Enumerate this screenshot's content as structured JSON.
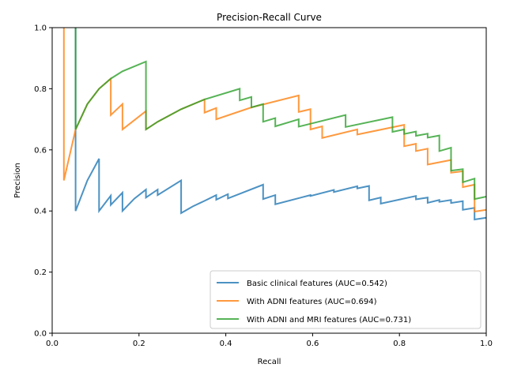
{
  "chart_data": {
    "type": "line",
    "title": "Precision-Recall Curve",
    "xlabel": "Recall",
    "ylabel": "Precision",
    "xlim": [
      0,
      1
    ],
    "ylim": [
      0,
      1
    ],
    "xticks": [
      0.0,
      0.2,
      0.4,
      0.6,
      0.8,
      1.0
    ],
    "yticks": [
      0.0,
      0.2,
      0.4,
      0.6,
      0.8,
      1.0
    ],
    "xtick_labels": [
      "0.0",
      "0.2",
      "0.4",
      "0.6",
      "0.8",
      "1.0"
    ],
    "ytick_labels": [
      "0.0",
      "0.2",
      "0.4",
      "0.6",
      "0.8",
      "1.0"
    ],
    "grid": false,
    "legend_position": "lower-right",
    "series": [
      {
        "name": "Basic clinical features (AUC=0.542)",
        "color": "#1f77b4",
        "x": [
          0.054,
          0.054,
          0.054,
          0.081,
          0.108,
          0.108,
          0.135,
          0.135,
          0.162,
          0.162,
          0.189,
          0.216,
          0.216,
          0.243,
          0.243,
          0.297,
          0.297,
          0.324,
          0.351,
          0.378,
          0.378,
          0.405,
          0.405,
          0.486,
          0.486,
          0.514,
          0.514,
          0.595,
          0.595,
          0.649,
          0.649,
          0.703,
          0.703,
          0.73,
          0.73,
          0.757,
          0.757,
          0.838,
          0.838,
          0.865,
          0.865,
          0.892,
          0.892,
          0.919,
          0.919,
          0.946,
          0.946,
          0.973,
          0.973,
          1.0
        ],
        "y": [
          1.0,
          0.9,
          0.4,
          0.5,
          0.571,
          0.4,
          0.45,
          0.42,
          0.46,
          0.4,
          0.44,
          0.47,
          0.444,
          0.47,
          0.452,
          0.5,
          0.393,
          0.415,
          0.433,
          0.452,
          0.437,
          0.455,
          0.441,
          0.486,
          0.439,
          0.452,
          0.422,
          0.452,
          0.449,
          0.469,
          0.462,
          0.481,
          0.474,
          0.482,
          0.435,
          0.444,
          0.424,
          0.449,
          0.438,
          0.444,
          0.427,
          0.436,
          0.43,
          0.436,
          0.426,
          0.432,
          0.404,
          0.41,
          0.372,
          0.378
        ]
      },
      {
        "name": "With ADNI features (AUC=0.694)",
        "color": "#ff7f0e",
        "x": [
          0.027,
          0.027,
          0.027,
          0.054,
          0.081,
          0.108,
          0.135,
          0.135,
          0.162,
          0.162,
          0.216,
          0.216,
          0.243,
          0.297,
          0.351,
          0.351,
          0.378,
          0.378,
          0.459,
          0.568,
          0.568,
          0.595,
          0.595,
          0.622,
          0.622,
          0.703,
          0.703,
          0.811,
          0.811,
          0.838,
          0.838,
          0.865,
          0.865,
          0.919,
          0.919,
          0.946,
          0.946,
          0.973,
          0.973,
          1.0
        ],
        "y": [
          1.0,
          0.75,
          0.5,
          0.667,
          0.75,
          0.8,
          0.833,
          0.714,
          0.75,
          0.667,
          0.727,
          0.667,
          0.692,
          0.733,
          0.765,
          0.722,
          0.737,
          0.7,
          0.739,
          0.778,
          0.724,
          0.733,
          0.667,
          0.677,
          0.639,
          0.667,
          0.65,
          0.682,
          0.612,
          0.62,
          0.596,
          0.604,
          0.552,
          0.567,
          0.525,
          0.53,
          0.478,
          0.486,
          0.398,
          0.404
        ]
      },
      {
        "name": "With ADNI and MRI features (AUC=0.731)",
        "color": "#2ca02c",
        "x": [
          0.054,
          0.054,
          0.081,
          0.108,
          0.135,
          0.162,
          0.216,
          0.216,
          0.243,
          0.297,
          0.351,
          0.432,
          0.432,
          0.459,
          0.459,
          0.486,
          0.486,
          0.514,
          0.514,
          0.568,
          0.568,
          0.676,
          0.676,
          0.784,
          0.784,
          0.811,
          0.811,
          0.838,
          0.838,
          0.865,
          0.865,
          0.892,
          0.892,
          0.919,
          0.919,
          0.946,
          0.946,
          0.973,
          0.973,
          1.0
        ],
        "y": [
          1.0,
          0.667,
          0.75,
          0.8,
          0.833,
          0.857,
          0.889,
          0.667,
          0.692,
          0.733,
          0.765,
          0.8,
          0.762,
          0.773,
          0.739,
          0.75,
          0.692,
          0.704,
          0.677,
          0.7,
          0.676,
          0.714,
          0.675,
          0.707,
          0.659,
          0.667,
          0.652,
          0.66,
          0.646,
          0.653,
          0.64,
          0.647,
          0.596,
          0.607,
          0.532,
          0.537,
          0.494,
          0.506,
          0.439,
          0.447
        ]
      }
    ]
  }
}
